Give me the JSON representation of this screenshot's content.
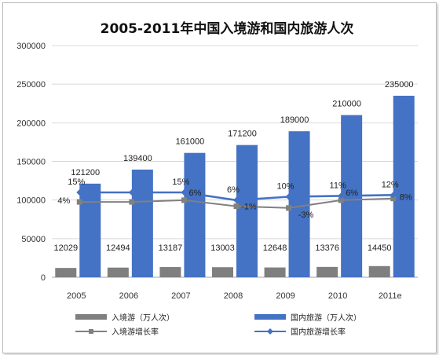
{
  "chart_data": {
    "type": "bar",
    "title": "2005-2011年中国入境游和国内旅游人次",
    "categories": [
      "2005",
      "2006",
      "2007",
      "2008",
      "2009",
      "2010",
      "2011e"
    ],
    "ylim": [
      0,
      300000
    ],
    "yticks": [
      0,
      50000,
      100000,
      150000,
      200000,
      250000,
      300000
    ],
    "grid": true,
    "legend_position": "bottom",
    "series": [
      {
        "name": "入境游（万人次）",
        "kind": "bar",
        "color": "#7f7f7f",
        "values": [
          12029,
          12494,
          13187,
          13003,
          12648,
          13376,
          14450
        ],
        "labels": [
          "12029",
          "12494",
          "13187",
          "13003",
          "12648",
          "13376",
          "14450"
        ]
      },
      {
        "name": "国内旅游（万人次）",
        "kind": "bar",
        "color": "#4472c4",
        "values": [
          121200,
          139400,
          161000,
          171200,
          189000,
          210000,
          235000
        ],
        "labels": [
          "121200",
          "139400",
          "161000",
          "171200",
          "189000",
          "210000",
          "235000"
        ]
      },
      {
        "name": "入境游增长率",
        "kind": "line",
        "color": "#808080",
        "values": [
          4,
          4,
          6,
          -1,
          -3,
          6,
          8
        ],
        "labels": [
          "4%",
          "",
          "6%",
          "-1%",
          "-3%",
          "6%",
          "8%"
        ]
      },
      {
        "name": "国内旅游增长率",
        "kind": "line",
        "color": "#4472c4",
        "values": [
          15,
          15,
          15,
          6,
          10,
          11,
          12
        ],
        "labels": [
          "15%",
          "",
          "15%",
          "6%",
          "10%",
          "11%",
          "12%"
        ]
      }
    ]
  }
}
